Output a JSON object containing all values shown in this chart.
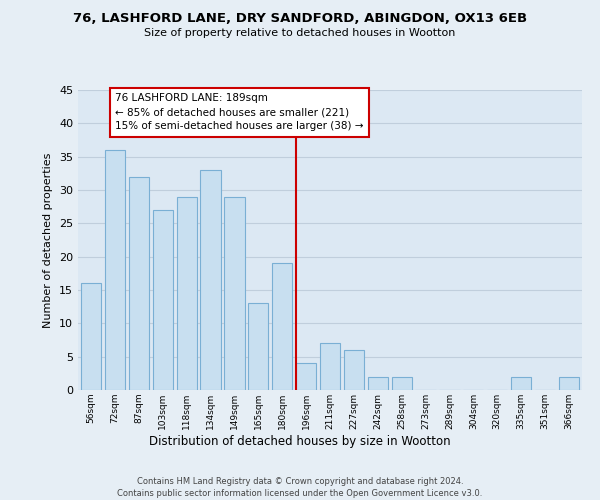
{
  "title": "76, LASHFORD LANE, DRY SANDFORD, ABINGDON, OX13 6EB",
  "subtitle": "Size of property relative to detached houses in Wootton",
  "xlabel": "Distribution of detached houses by size in Wootton",
  "ylabel": "Number of detached properties",
  "bar_color": "#c8dff0",
  "bar_edge_color": "#7aafd4",
  "bg_color": "#e6eef5",
  "plot_bg_color": "#dce8f3",
  "grid_color": "#c0cedc",
  "vline_color": "#cc0000",
  "annotation_text": "76 LASHFORD LANE: 189sqm\n← 85% of detached houses are smaller (221)\n15% of semi-detached houses are larger (38) →",
  "annotation_box_color": "#ffffff",
  "annotation_box_edge_color": "#cc0000",
  "categories": [
    "56sqm",
    "72sqm",
    "87sqm",
    "103sqm",
    "118sqm",
    "134sqm",
    "149sqm",
    "165sqm",
    "180sqm",
    "196sqm",
    "211sqm",
    "227sqm",
    "242sqm",
    "258sqm",
    "273sqm",
    "289sqm",
    "304sqm",
    "320sqm",
    "335sqm",
    "351sqm",
    "366sqm"
  ],
  "values": [
    16,
    36,
    32,
    27,
    29,
    33,
    29,
    13,
    19,
    4,
    7,
    6,
    2,
    2,
    0,
    0,
    0,
    0,
    2,
    0,
    2
  ],
  "ylim": [
    0,
    45
  ],
  "yticks": [
    0,
    5,
    10,
    15,
    20,
    25,
    30,
    35,
    40,
    45
  ],
  "vline_index": 8.57,
  "footer1": "Contains HM Land Registry data © Crown copyright and database right 2024.",
  "footer2": "Contains public sector information licensed under the Open Government Licence v3.0."
}
